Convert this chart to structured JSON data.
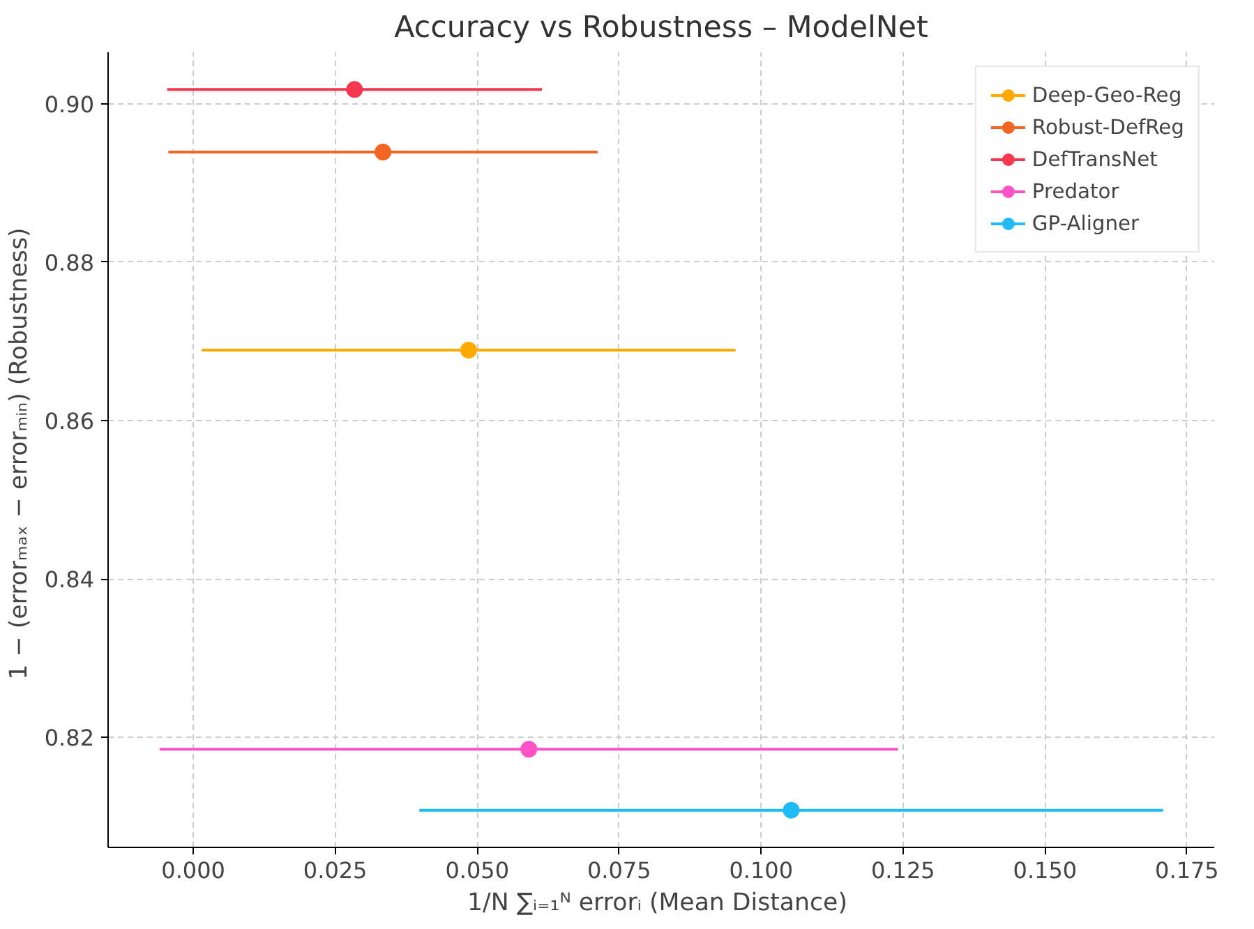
{
  "chart_data": {
    "type": "scatter",
    "title": "Accuracy vs Robustness – ModelNet",
    "xlabel": "1/N ∑ᵢ₌₁ᴺ errorᵢ  (Mean Distance)",
    "ylabel": "1 − (errorₘₐₓ − errorₘᵢₙ)  (Robustness)",
    "xlim": [
      -0.015,
      0.1798
    ],
    "ylim": [
      0.8061,
      0.9065
    ],
    "xticks": [
      {
        "value": 0,
        "label": "0.000"
      },
      0.025,
      {
        "value": 0.05,
        "label": "0.050"
      },
      0.075,
      {
        "value": 0.1,
        "label": "0.100"
      },
      0.125,
      {
        "value": 0.15,
        "label": "0.150"
      },
      0.175
    ],
    "yticks": [
      {
        "value": 0.82,
        "label": "0.82"
      },
      0.84,
      0.86,
      0.88,
      {
        "value": 0.9,
        "label": "0.90"
      }
    ],
    "grid": true,
    "line_style": "dashed",
    "legend": "top right",
    "marker": "circle",
    "series": [
      {
        "name": "Deep-Geo-Reg",
        "color": "#ffaa00",
        "x": [
          0.0485
        ],
        "values": [
          0.8689
        ],
        "xerrors": [
          0.047
        ]
      },
      {
        "name": "Robust-DefReg",
        "color": "#f26522",
        "x": [
          0.0334
        ],
        "values": [
          0.8939
        ],
        "xerrors": [
          0.0378
        ]
      },
      {
        "name": "DefTransNet",
        "color": "#f7364f",
        "x": [
          0.0284
        ],
        "values": [
          0.9018
        ],
        "xerrors": [
          0.033
        ]
      },
      {
        "name": "Predator",
        "color": "#ff52c6",
        "x": [
          0.0591
        ],
        "values": [
          0.8185
        ],
        "xerrors": [
          0.065
        ]
      },
      {
        "name": "GP-Aligner",
        "color": "#1fbbf5",
        "x": [
          0.1053
        ],
        "values": [
          0.8108
        ],
        "xerrors": [
          0.0655
        ]
      }
    ]
  }
}
